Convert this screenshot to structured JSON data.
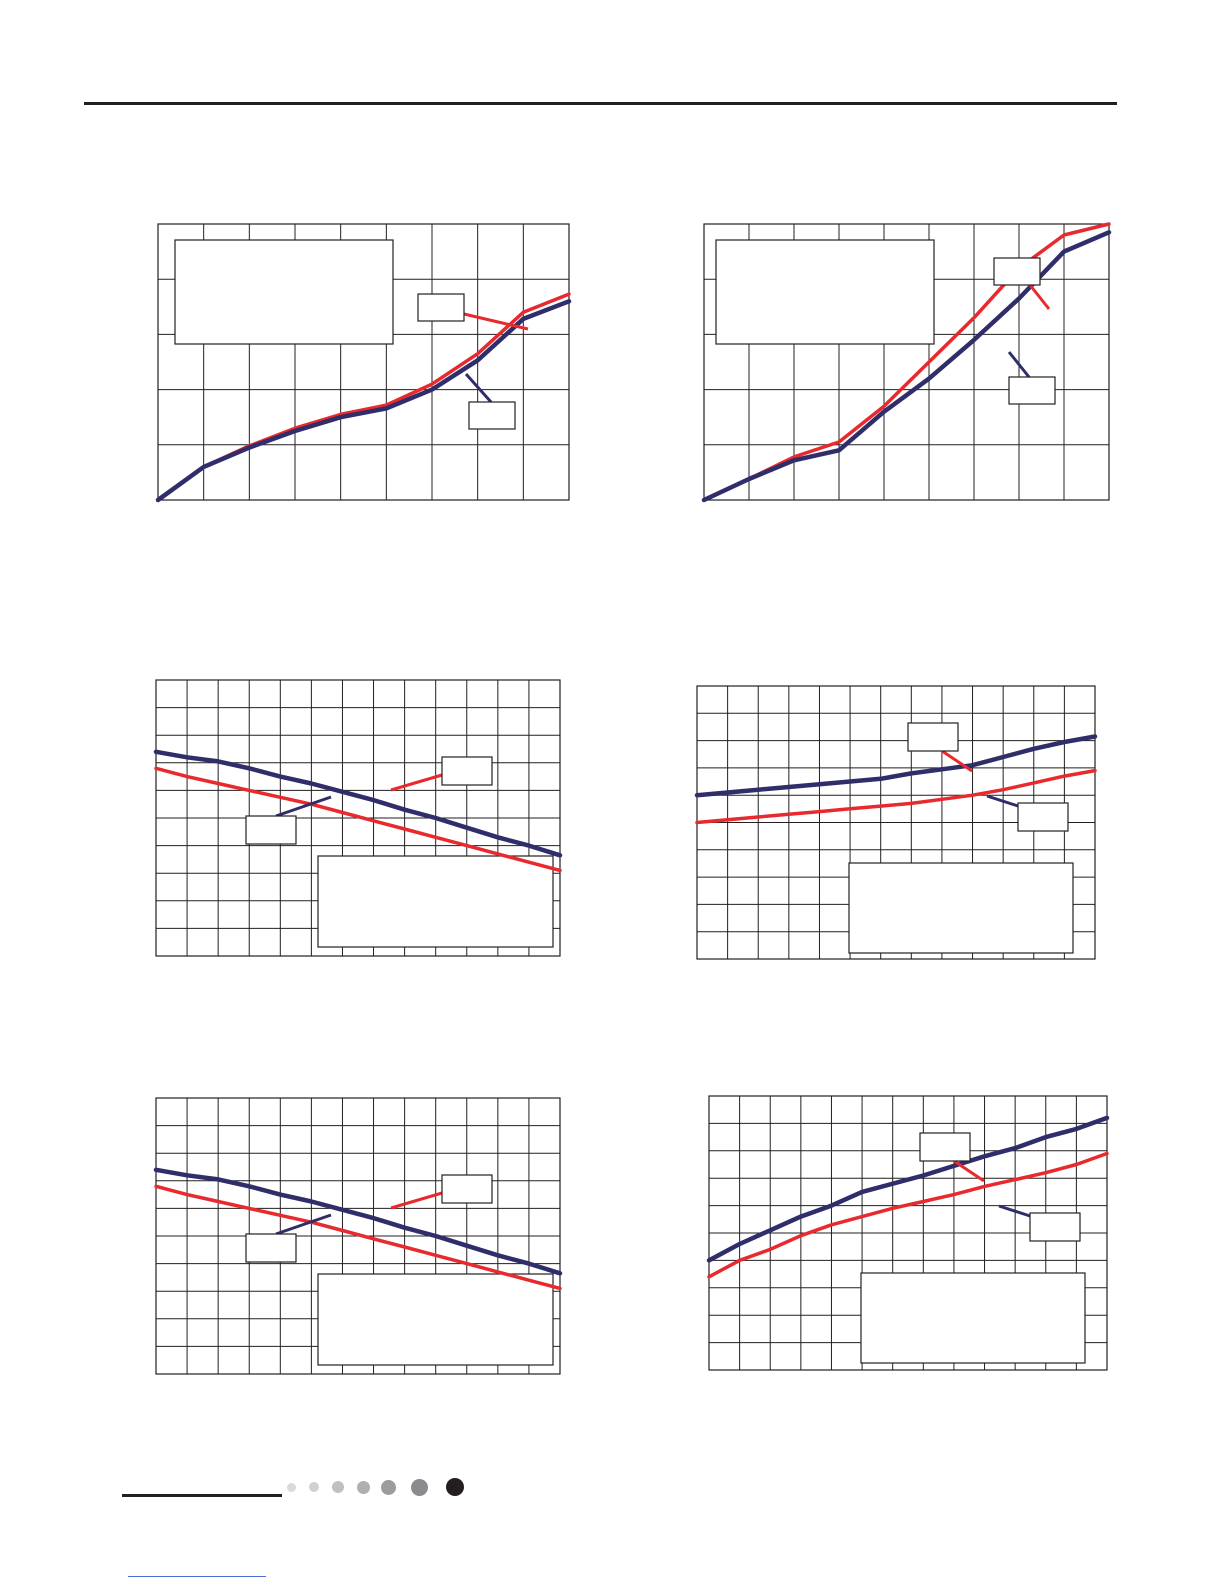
{
  "colors": {
    "red": "#e8292d",
    "navy": "#2f2e6b",
    "grid": "#231f20",
    "footer_link": "#4a6fd8"
  },
  "footer": {
    "page_indicator_dots": 7,
    "active_dot": 7
  },
  "chart_data": [
    {
      "type": "line",
      "grid": true,
      "ylim": [
        0,
        5
      ],
      "xlim": [
        0,
        9
      ],
      "series": [
        {
          "color": "#e8292d",
          "x": [
            0,
            1,
            2,
            3,
            4,
            5,
            6,
            7,
            8,
            9
          ],
          "y": [
            0,
            0.6,
            0.98,
            1.3,
            1.55,
            1.72,
            2.1,
            2.65,
            3.4,
            3.73
          ]
        },
        {
          "color": "#2f2e6b",
          "x": [
            0,
            1,
            2,
            3,
            4,
            5,
            6,
            7,
            8,
            9
          ],
          "y": [
            0,
            0.6,
            0.95,
            1.25,
            1.5,
            1.66,
            2.0,
            2.53,
            3.28,
            3.6
          ]
        }
      ]
    },
    {
      "type": "line",
      "grid": true,
      "ylim": [
        0,
        5
      ],
      "xlim": [
        0,
        9
      ],
      "series": [
        {
          "color": "#e8292d",
          "x": [
            0,
            1,
            2,
            3,
            4,
            5,
            6,
            7,
            8,
            9
          ],
          "y": [
            0,
            0.38,
            0.78,
            1.05,
            1.7,
            2.5,
            3.3,
            4.2,
            4.8,
            5.0
          ]
        },
        {
          "color": "#2f2e6b",
          "x": [
            0,
            1,
            2,
            3,
            4,
            5,
            6,
            7,
            8,
            9
          ],
          "y": [
            0,
            0.38,
            0.72,
            0.9,
            1.6,
            2.2,
            2.9,
            3.65,
            4.5,
            4.85
          ]
        }
      ]
    },
    {
      "type": "line",
      "grid": true,
      "ylim": [
        0,
        10
      ],
      "xlim": [
        0,
        13
      ],
      "series": [
        {
          "color": "#e8292d",
          "x": [
            0,
            1,
            2,
            3,
            4,
            5,
            6,
            7,
            8,
            9,
            10,
            11,
            12,
            13
          ],
          "y": [
            6.8,
            6.5,
            6.25,
            6.0,
            5.75,
            5.5,
            5.2,
            4.9,
            4.6,
            4.3,
            4.0,
            3.7,
            3.4,
            3.1
          ]
        },
        {
          "color": "#2f2e6b",
          "x": [
            0,
            1,
            2,
            3,
            4,
            5,
            6,
            7,
            8,
            9,
            10,
            11,
            12,
            13
          ],
          "y": [
            7.4,
            7.2,
            7.05,
            6.8,
            6.5,
            6.25,
            5.95,
            5.65,
            5.3,
            5.0,
            4.65,
            4.3,
            4.0,
            3.65
          ]
        }
      ]
    },
    {
      "type": "line",
      "grid": true,
      "ylim": [
        0,
        10
      ],
      "xlim": [
        0,
        13
      ],
      "series": [
        {
          "color": "#e8292d",
          "x": [
            0,
            1,
            2,
            3,
            4,
            5,
            6,
            7,
            8,
            9,
            10,
            11,
            12,
            13
          ],
          "y": [
            5.0,
            5.1,
            5.2,
            5.3,
            5.4,
            5.5,
            5.6,
            5.7,
            5.85,
            6.0,
            6.2,
            6.45,
            6.7,
            6.9
          ]
        },
        {
          "color": "#2f2e6b",
          "x": [
            0,
            1,
            2,
            3,
            4,
            5,
            6,
            7,
            8,
            9,
            10,
            11,
            12,
            13
          ],
          "y": [
            6.0,
            6.1,
            6.2,
            6.3,
            6.4,
            6.5,
            6.6,
            6.8,
            6.95,
            7.1,
            7.4,
            7.7,
            7.95,
            8.15
          ]
        }
      ]
    },
    {
      "type": "line",
      "grid": true,
      "ylim": [
        0,
        10
      ],
      "xlim": [
        0,
        13
      ],
      "series": [
        {
          "color": "#e8292d",
          "x": [
            0,
            1,
            2,
            3,
            4,
            5,
            6,
            7,
            8,
            9,
            10,
            11,
            12,
            13
          ],
          "y": [
            6.8,
            6.5,
            6.25,
            6.0,
            5.75,
            5.5,
            5.2,
            4.9,
            4.6,
            4.3,
            4.0,
            3.7,
            3.4,
            3.1
          ]
        },
        {
          "color": "#2f2e6b",
          "x": [
            0,
            1,
            2,
            3,
            4,
            5,
            6,
            7,
            8,
            9,
            10,
            11,
            12,
            13
          ],
          "y": [
            7.4,
            7.2,
            7.05,
            6.8,
            6.5,
            6.25,
            5.95,
            5.65,
            5.3,
            5.0,
            4.65,
            4.3,
            4.0,
            3.65
          ]
        }
      ]
    },
    {
      "type": "line",
      "grid": true,
      "ylim": [
        0,
        10
      ],
      "xlim": [
        0,
        13
      ],
      "series": [
        {
          "color": "#e8292d",
          "x": [
            0,
            1,
            2,
            3,
            4,
            5,
            6,
            7,
            8,
            9,
            10,
            11,
            12,
            13
          ],
          "y": [
            3.4,
            4.0,
            4.4,
            4.9,
            5.3,
            5.6,
            5.9,
            6.15,
            6.4,
            6.7,
            6.95,
            7.2,
            7.5,
            7.9
          ]
        },
        {
          "color": "#2f2e6b",
          "x": [
            0,
            1,
            2,
            3,
            4,
            5,
            6,
            7,
            8,
            9,
            10,
            11,
            12,
            13
          ],
          "y": [
            4.0,
            4.6,
            5.1,
            5.6,
            6.0,
            6.5,
            6.8,
            7.1,
            7.45,
            7.8,
            8.1,
            8.5,
            8.8,
            9.2
          ]
        }
      ]
    }
  ]
}
